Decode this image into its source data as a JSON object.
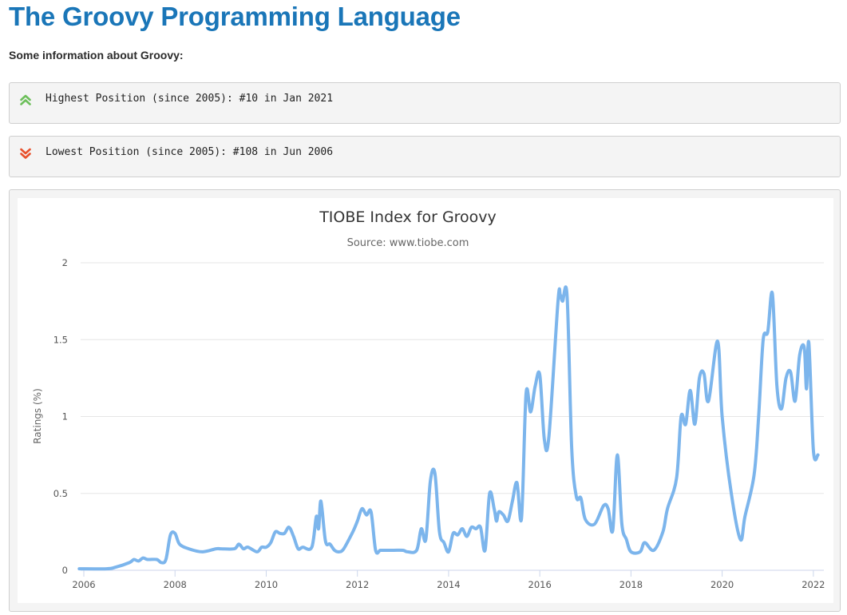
{
  "page": {
    "title": "The Groovy Programming Language",
    "intro": "Some information about Groovy:"
  },
  "highest": {
    "text": "Highest Position (since 2005): #10 in Jan 2021",
    "icon": "double-chevron-up-icon",
    "color": "#6cbf5a"
  },
  "lowest": {
    "text": "Lowest Position (since 2005): #108 in Jun 2006",
    "icon": "double-chevron-down-icon",
    "color": "#e8502c"
  },
  "chart_data": {
    "type": "line",
    "title": "TIOBE Index for Groovy",
    "subtitle": "Source: www.tiobe.com",
    "ylabel": "Ratings (%)",
    "xlabel": "",
    "xlim": [
      2005.93,
      2022.23
    ],
    "ylim": [
      0,
      2
    ],
    "yticks": [
      0,
      0.5,
      1,
      1.5,
      2
    ],
    "ytick_labels": [
      "0",
      "0.5",
      "1",
      "1.5",
      "2"
    ],
    "xticks": [
      2006,
      2008,
      2010,
      2012,
      2014,
      2016,
      2018,
      2020,
      2022
    ],
    "xtick_labels": [
      "2006",
      "2008",
      "2010",
      "2012",
      "2014",
      "2016",
      "2018",
      "2020",
      "2022"
    ],
    "grid": true,
    "legend": "none",
    "line_color": "#7cb5ec",
    "series": [
      {
        "x": [
          2005.9,
          2006.5,
          2006.7,
          2007.0,
          2007.1,
          2007.2,
          2007.3,
          2007.4,
          2007.6,
          2007.7,
          2007.8,
          2007.9,
          2008.0,
          2008.1,
          2008.3,
          2008.6,
          2008.9,
          2009.0,
          2009.3,
          2009.4,
          2009.5,
          2009.6,
          2009.8,
          2009.9,
          2010.0,
          2010.1,
          2010.2,
          2010.3,
          2010.4,
          2010.5,
          2010.6,
          2010.7,
          2010.8,
          2011.0,
          2011.1,
          2011.15,
          2011.2,
          2011.3,
          2011.4,
          2011.5,
          2011.6,
          2011.7,
          2011.9,
          2012.0,
          2012.1,
          2012.2,
          2012.3,
          2012.4,
          2012.5,
          2012.6,
          2012.8,
          2013.0,
          2013.1,
          2013.3,
          2013.4,
          2013.5,
          2013.6,
          2013.7,
          2013.8,
          2013.9,
          2014.0,
          2014.1,
          2014.2,
          2014.3,
          2014.4,
          2014.5,
          2014.6,
          2014.7,
          2014.8,
          2014.9,
          2015.0,
          2015.05,
          2015.1,
          2015.2,
          2015.3,
          2015.4,
          2015.5,
          2015.6,
          2015.7,
          2015.8,
          2015.9,
          2016.0,
          2016.1,
          2016.2,
          2016.4,
          2016.45,
          2016.5,
          2016.6,
          2016.7,
          2016.8,
          2016.9,
          2017.0,
          2017.2,
          2017.4,
          2017.5,
          2017.6,
          2017.7,
          2017.8,
          2017.9,
          2018.0,
          2018.2,
          2018.3,
          2018.5,
          2018.7,
          2018.8,
          2019.0,
          2019.1,
          2019.2,
          2019.3,
          2019.4,
          2019.5,
          2019.6,
          2019.7,
          2019.9,
          2020.0,
          2020.2,
          2020.4,
          2020.5,
          2020.7,
          2020.8,
          2020.9,
          2021.0,
          2021.1,
          2021.2,
          2021.3,
          2021.4,
          2021.5,
          2021.6,
          2021.7,
          2021.8,
          2021.85,
          2021.9,
          2022.0,
          2022.1
        ],
        "y": [
          0.01,
          0.01,
          0.02,
          0.05,
          0.07,
          0.06,
          0.08,
          0.07,
          0.07,
          0.05,
          0.07,
          0.23,
          0.24,
          0.17,
          0.14,
          0.12,
          0.14,
          0.14,
          0.14,
          0.17,
          0.14,
          0.15,
          0.12,
          0.15,
          0.15,
          0.18,
          0.25,
          0.24,
          0.24,
          0.28,
          0.22,
          0.14,
          0.15,
          0.15,
          0.35,
          0.27,
          0.45,
          0.19,
          0.17,
          0.13,
          0.12,
          0.14,
          0.25,
          0.32,
          0.4,
          0.36,
          0.38,
          0.13,
          0.13,
          0.13,
          0.13,
          0.13,
          0.12,
          0.13,
          0.27,
          0.2,
          0.58,
          0.63,
          0.25,
          0.18,
          0.12,
          0.24,
          0.23,
          0.27,
          0.22,
          0.28,
          0.27,
          0.28,
          0.13,
          0.5,
          0.4,
          0.32,
          0.38,
          0.36,
          0.32,
          0.45,
          0.57,
          0.34,
          1.15,
          1.03,
          1.2,
          1.27,
          0.85,
          0.87,
          1.75,
          1.79,
          1.75,
          1.78,
          0.8,
          0.48,
          0.47,
          0.33,
          0.3,
          0.42,
          0.4,
          0.26,
          0.75,
          0.3,
          0.2,
          0.12,
          0.12,
          0.18,
          0.13,
          0.25,
          0.4,
          0.6,
          1.0,
          0.95,
          1.17,
          0.95,
          1.25,
          1.28,
          1.1,
          1.49,
          1.0,
          0.5,
          0.2,
          0.35,
          0.62,
          1.0,
          1.5,
          1.55,
          1.8,
          1.2,
          1.05,
          1.25,
          1.29,
          1.1,
          1.4,
          1.45,
          1.18,
          1.48,
          0.78,
          0.75
        ]
      }
    ]
  }
}
